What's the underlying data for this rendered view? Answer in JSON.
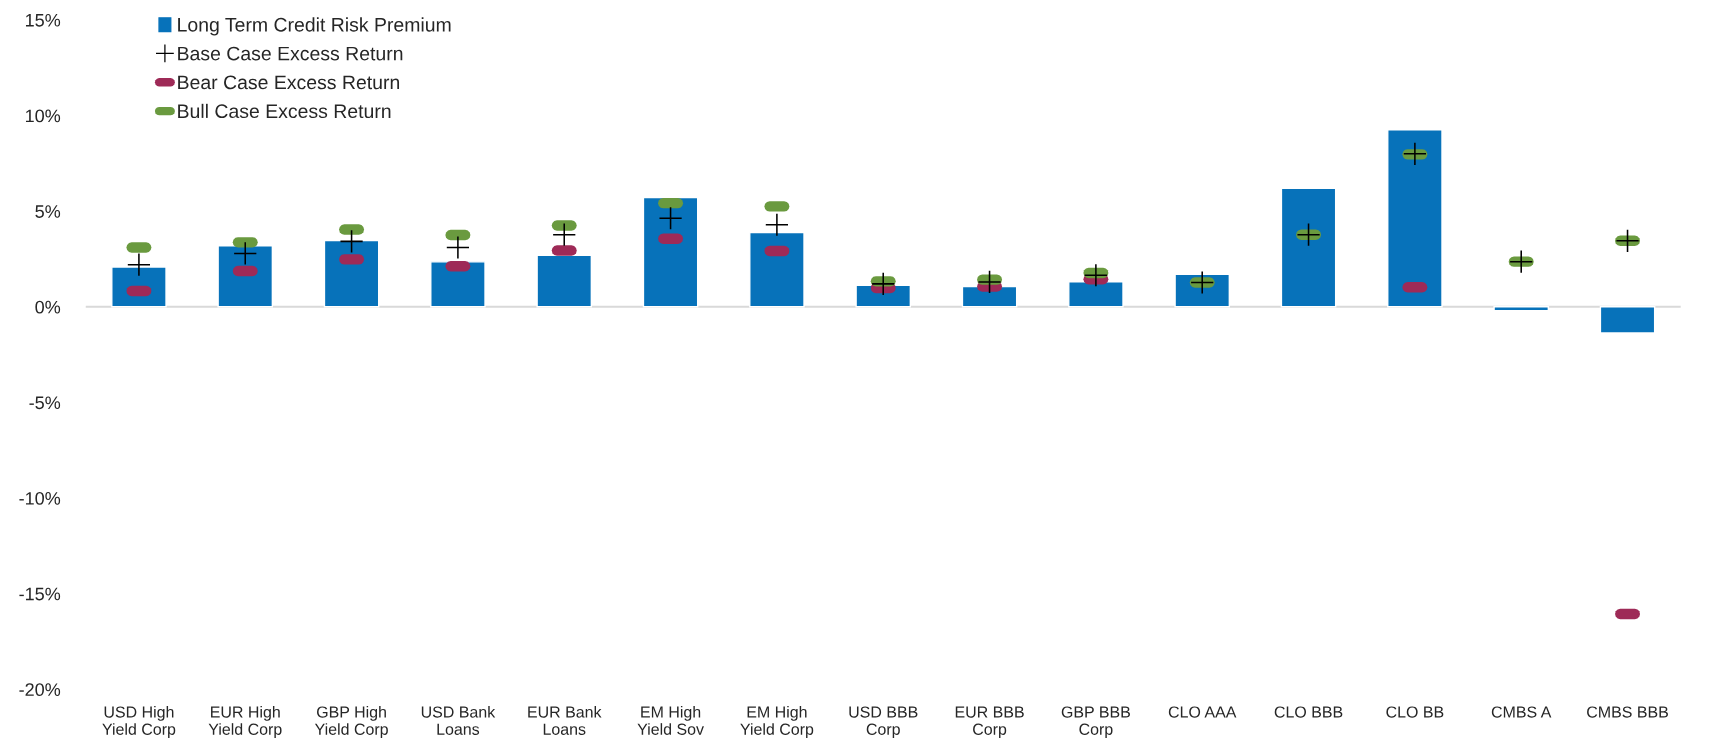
{
  "chart_data": {
    "type": "bar",
    "categories": [
      "USD High\nYield Corp",
      "EUR High\nYield Corp",
      "GBP High\nYield Corp",
      "USD Bank\nLoans",
      "EUR Bank\nLoans",
      "EM High\nYield Sov",
      "EM High\nYield Corp",
      "USD BBB\nCorp",
      "EUR BBB\nCorp",
      "GBP BBB\nCorp",
      "CLO AAA",
      "CLO BBB",
      "CLO BB",
      "CMBS A",
      "CMBS BBB"
    ],
    "series": [
      {
        "name": "Long Term Credit Risk Premium",
        "color": "#0772ba",
        "values": [
          2.08,
          3.19,
          3.46,
          2.35,
          2.69,
          5.71,
          3.88,
          1.13,
          1.06,
          1.31,
          1.7,
          6.2,
          9.25,
          -0.21,
          -1.37
        ]
      },
      {
        "name": "Base Case Excess Return",
        "type": "scatter",
        "marker": "cross",
        "color": "#000000",
        "x": [
          "USD High\nYield Corp",
          "EUR High\nYield Corp",
          "GBP High\nYield Corp",
          "USD Bank\nLoans",
          "EUR Bank\nLoans",
          "EM High\nYield Sov",
          "EM High\nYield Corp",
          "USD BBB\nCorp",
          "EUR BBB\nCorp",
          "GBP BBB\nCorp",
          "CLO AAA",
          "CLO BBB",
          "CLO BB",
          "CMBS A",
          "CMBS BBB"
        ],
        "values": [
          2.2,
          2.79,
          3.42,
          3.1,
          3.77,
          4.63,
          4.29,
          1.2,
          1.3,
          1.65,
          1.27,
          3.77,
          8.0,
          2.36,
          3.45
        ]
      },
      {
        "name": "Bear Case Excess Return",
        "type": "scatter",
        "color": "#9e2a57",
        "x": [
          "USD High\nYield Corp",
          "EUR High\nYield Corp",
          "GBP High\nYield Corp",
          "USD Bank\nLoans",
          "EUR Bank\nLoans",
          "EM High\nYield Sov",
          "EM High\nYield Corp",
          "USD BBB\nCorp",
          "EUR BBB\nCorp",
          "GBP BBB\nCorp",
          "CLO AAA",
          "CLO BBB",
          "CLO BB",
          "CMBS A",
          "CMBS BBB"
        ],
        "values": [
          0.83,
          1.87,
          2.48,
          2.12,
          2.94,
          3.56,
          2.92,
          0.98,
          1.06,
          1.44,
          null,
          null,
          1.02,
          null,
          -16.06
        ]
      },
      {
        "name": "Bull Case Excess Return",
        "type": "scatter",
        "color": "#6a9a3f",
        "x": [
          "USD High\nYield Corp",
          "EUR High\nYield Corp",
          "GBP High\nYield Corp",
          "USD Bank\nLoans",
          "EUR Bank\nLoans",
          "EM High\nYield Sov",
          "EM High\nYield Corp",
          "USD BBB\nCorp",
          "EUR BBB\nCorp",
          "GBP BBB\nCorp",
          "CLO AAA",
          "CLO BBB",
          "CLO BB",
          "CMBS A",
          "CMBS BBB"
        ],
        "values": [
          3.1,
          3.37,
          4.04,
          3.75,
          4.25,
          5.42,
          5.25,
          1.33,
          1.42,
          1.77,
          1.27,
          3.77,
          7.97,
          2.36,
          3.45
        ]
      }
    ],
    "ylim": [
      -20,
      15
    ],
    "yticks": [
      {
        "value": -20,
        "label": "-20%"
      },
      {
        "value": -15,
        "label": "-15%"
      },
      {
        "value": -10,
        "label": "-10%"
      },
      {
        "value": -5,
        "label": "-5%"
      },
      {
        "value": 0,
        "label": "0%"
      },
      {
        "value": 5,
        "label": "5%"
      },
      {
        "value": 10,
        "label": "10%"
      },
      {
        "value": 15,
        "label": "15%"
      }
    ],
    "ref_lines": [
      {
        "axis": "y",
        "value": 0,
        "color": "#d9d9d9"
      }
    ],
    "legend": "top left",
    "grid": false
  }
}
